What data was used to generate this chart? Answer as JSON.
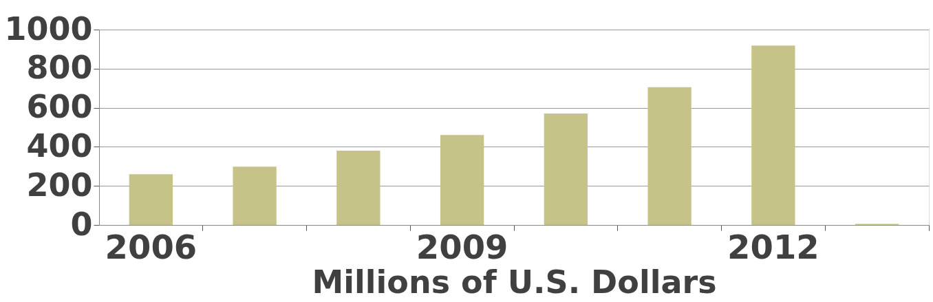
{
  "chart_data": {
    "type": "bar",
    "xlabel": "Millions of U.S. Dollars",
    "categories": [
      "2006",
      null,
      null,
      "2009",
      null,
      null,
      "2012",
      null
    ],
    "values": [
      260,
      298,
      380,
      460,
      570,
      705,
      918,
      5
    ],
    "color": "#c5c387",
    "ylim": [
      0,
      1000
    ],
    "yticks": [
      0,
      200,
      400,
      600,
      800,
      1000
    ],
    "grid": "y"
  }
}
